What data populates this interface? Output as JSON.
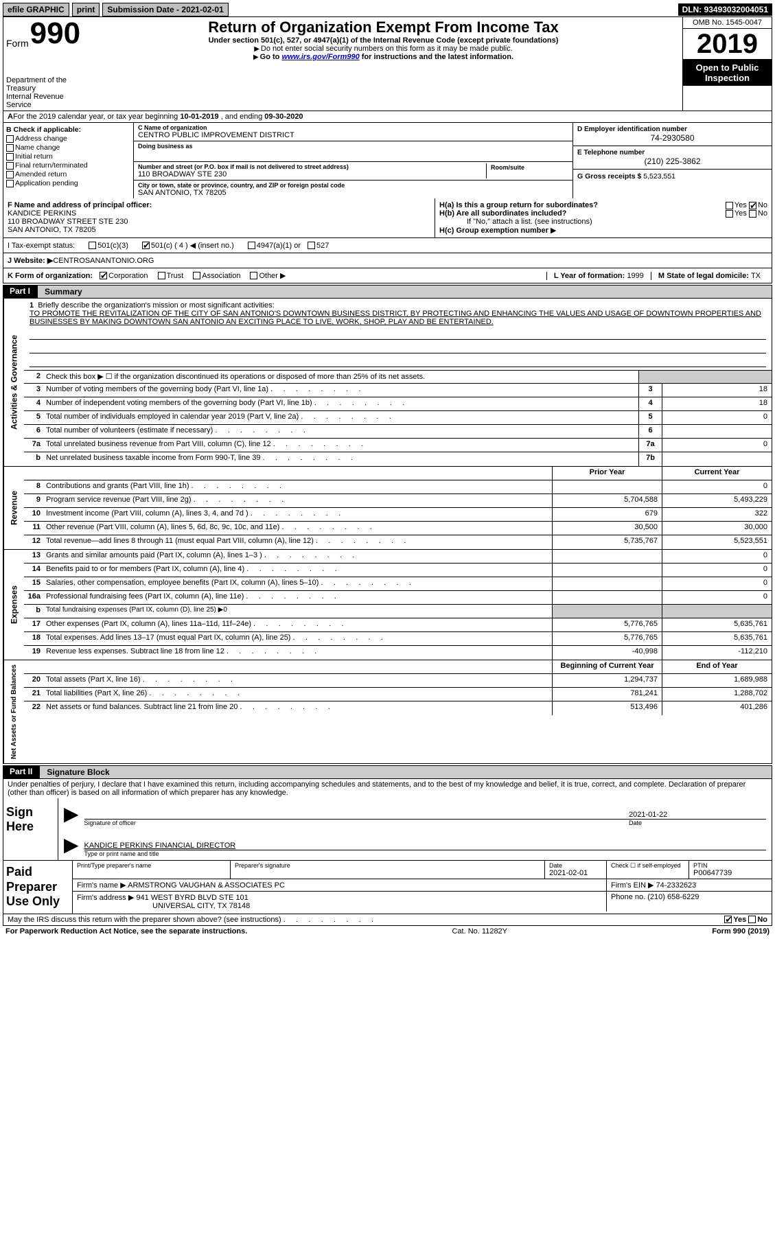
{
  "topbar": {
    "efile": "efile GRAPHIC",
    "print": "print",
    "subdate_label": "Submission Date - ",
    "subdate": "2021-02-01",
    "dln_label": "DLN: ",
    "dln": "93493032004051"
  },
  "header": {
    "form_small": "Form",
    "form_big": "990",
    "title": "Return of Organization Exempt From Income Tax",
    "subtitle": "Under section 501(c), 527, or 4947(a)(1) of the Internal Revenue Code (except private foundations)",
    "line1": "Do not enter social security numbers on this form as it may be made public.",
    "line2_pre": "Go to ",
    "line2_link": "www.irs.gov/Form990",
    "line2_post": " for instructions and the latest information.",
    "omb": "OMB No. 1545-0047",
    "year": "2019",
    "open": "Open to Public Inspection",
    "dept1": "Department of the Treasury",
    "dept2": "Internal Revenue Service"
  },
  "rowA": {
    "pre": "A",
    "txt": "For the 2019 calendar year, or tax year beginning ",
    "begin": "10-01-2019",
    "mid": "    , and ending ",
    "end": "09-30-2020"
  },
  "B": {
    "hdr": "B Check if applicable:",
    "o1": "Address change",
    "o2": "Name change",
    "o3": "Initial return",
    "o4": "Final return/terminated",
    "o5": "Amended return",
    "o6": "Application pending"
  },
  "C": {
    "name_lab": "C Name of organization",
    "name": "CENTRO PUBLIC IMPROVEMENT DISTRICT",
    "dba_lab": "Doing business as",
    "addr_lab": "Number and street (or P.O. box if mail is not delivered to street address)",
    "addr": "110 BROADWAY STE 230",
    "room_lab": "Room/suite",
    "city_lab": "City or town, state or province, country, and ZIP or foreign postal code",
    "city": "SAN ANTONIO, TX  78205"
  },
  "D": {
    "lab": "D Employer identification number",
    "val": "74-2930580"
  },
  "E": {
    "lab": "E Telephone number",
    "val": "(210) 225-3862"
  },
  "G": {
    "lab": "G Gross receipts $ ",
    "val": "5,523,551"
  },
  "F": {
    "lab": "F  Name and address of principal officer:",
    "name": "KANDICE PERKINS",
    "addr1": "110 BROADWAY STREET STE 230",
    "addr2": "SAN ANTONIO, TX  78205"
  },
  "H": {
    "a_lab": "H(a)  Is this a group return for subordinates?",
    "b_lab": "H(b)  Are all subordinates included?",
    "b_note": "If \"No,\" attach a list. (see instructions)",
    "c_lab": "H(c)  Group exemption number",
    "yes": "Yes",
    "no": "No"
  },
  "I": {
    "lab": "I    Tax-exempt status:",
    "o1": "501(c)(3)",
    "o2": "501(c) ( 4 ) ◀ (insert no.)",
    "o3": "4947(a)(1) or",
    "o4": "527"
  },
  "J": {
    "lab": "J    Website: ▶ ",
    "val": "CENTROSANANTONIO.ORG"
  },
  "K": {
    "lab": "K Form of organization:",
    "o1": "Corporation",
    "o2": "Trust",
    "o3": "Association",
    "o4": "Other ▶"
  },
  "L": {
    "lab": "L Year of formation: ",
    "val": "1999"
  },
  "M": {
    "lab": "M State of legal domicile: ",
    "val": "TX"
  },
  "partI": {
    "tag": "Part I",
    "title": "Summary",
    "q1": "Briefly describe the organization's mission or most significant activities:",
    "mission": "TO PROMOTE THE REVITALIZATION OF THE CITY OF SAN ANTONIO'S DOWNTOWN BUSINESS DISTRICT, BY PROTECTING AND ENHANCING THE VALUES AND USAGE OF DOWNTOWN PROPERTIES AND BUSINESSES BY MAKING DOWNTOWN SAN ANTONIO AN EXCITING PLACE TO LIVE, WORK, SHOP, PLAY AND BE ENTERTAINED.",
    "q2": "Check this box ▶ ☐  if the organization discontinued its operations or disposed of more than 25% of its net assets.",
    "vlabel1": "Activities & Governance",
    "vlabel2": "Revenue",
    "vlabel3": "Expenses",
    "vlabel4": "Net Assets or Fund Balances",
    "hdr_prior": "Prior Year",
    "hdr_curr": "Current Year",
    "hdr_boy": "Beginning of Current Year",
    "hdr_eoy": "End of Year",
    "lines_gov": [
      {
        "n": "3",
        "t": "Number of voting members of the governing body (Part VI, line 1a)",
        "box": "3",
        "v": "18"
      },
      {
        "n": "4",
        "t": "Number of independent voting members of the governing body (Part VI, line 1b)",
        "box": "4",
        "v": "18"
      },
      {
        "n": "5",
        "t": "Total number of individuals employed in calendar year 2019 (Part V, line 2a)",
        "box": "5",
        "v": "0"
      },
      {
        "n": "6",
        "t": "Total number of volunteers (estimate if necessary)",
        "box": "6",
        "v": ""
      },
      {
        "n": "7a",
        "t": "Total unrelated business revenue from Part VIII, column (C), line 12",
        "box": "7a",
        "v": "0"
      },
      {
        "n": "b",
        "t": "Net unrelated business taxable income from Form 990-T, line 39",
        "box": "7b",
        "v": ""
      }
    ],
    "lines_rev": [
      {
        "n": "8",
        "t": "Contributions and grants (Part VIII, line 1h)",
        "p": "",
        "c": "0"
      },
      {
        "n": "9",
        "t": "Program service revenue (Part VIII, line 2g)",
        "p": "5,704,588",
        "c": "5,493,229"
      },
      {
        "n": "10",
        "t": "Investment income (Part VIII, column (A), lines 3, 4, and 7d )",
        "p": "679",
        "c": "322"
      },
      {
        "n": "11",
        "t": "Other revenue (Part VIII, column (A), lines 5, 6d, 8c, 9c, 10c, and 11e)",
        "p": "30,500",
        "c": "30,000"
      },
      {
        "n": "12",
        "t": "Total revenue—add lines 8 through 11 (must equal Part VIII, column (A), line 12)",
        "p": "5,735,767",
        "c": "5,523,551"
      }
    ],
    "lines_exp": [
      {
        "n": "13",
        "t": "Grants and similar amounts paid (Part IX, column (A), lines 1–3 )",
        "p": "",
        "c": "0"
      },
      {
        "n": "14",
        "t": "Benefits paid to or for members (Part IX, column (A), line 4)",
        "p": "",
        "c": "0"
      },
      {
        "n": "15",
        "t": "Salaries, other compensation, employee benefits (Part IX, column (A), lines 5–10)",
        "p": "",
        "c": "0"
      },
      {
        "n": "16a",
        "t": "Professional fundraising fees (Part IX, column (A), line 11e)",
        "p": "",
        "c": "0"
      },
      {
        "n": "b",
        "t": "Total fundraising expenses (Part IX, column (D), line 25) ▶0",
        "p": null,
        "c": null
      },
      {
        "n": "17",
        "t": "Other expenses (Part IX, column (A), lines 11a–11d, 11f–24e)",
        "p": "5,776,765",
        "c": "5,635,761"
      },
      {
        "n": "18",
        "t": "Total expenses. Add lines 13–17 (must equal Part IX, column (A), line 25)",
        "p": "5,776,765",
        "c": "5,635,761"
      },
      {
        "n": "19",
        "t": "Revenue less expenses. Subtract line 18 from line 12",
        "p": "-40,998",
        "c": "-112,210"
      }
    ],
    "lines_net": [
      {
        "n": "20",
        "t": "Total assets (Part X, line 16)",
        "p": "1,294,737",
        "c": "1,689,988"
      },
      {
        "n": "21",
        "t": "Total liabilities (Part X, line 26)",
        "p": "781,241",
        "c": "1,288,702"
      },
      {
        "n": "22",
        "t": "Net assets or fund balances. Subtract line 21 from line 20",
        "p": "513,496",
        "c": "401,286"
      }
    ]
  },
  "partII": {
    "tag": "Part II",
    "title": "Signature Block",
    "perjury": "Under penalties of perjury, I declare that I have examined this return, including accompanying schedules and statements, and to the best of my knowledge and belief, it is true, correct, and complete. Declaration of preparer (other than officer) is based on all information of which preparer has any knowledge.",
    "sign_here": "Sign Here",
    "sig_officer": "Signature of officer",
    "sig_date": "Date",
    "sig_date_val": "2021-01-22",
    "officer_name": "KANDICE PERKINS  FINANCIAL DIRECTOR",
    "officer_sub": "Type or print name and title",
    "paid": "Paid Preparer Use Only",
    "prep_name_lab": "Print/Type preparer's name",
    "prep_sig_lab": "Preparer's signature",
    "prep_date_lab": "Date",
    "prep_date": "2021-02-01",
    "prep_check": "Check ☐ if self-employed",
    "ptin_lab": "PTIN",
    "ptin": "P00647739",
    "firm_name_lab": "Firm's name     ▶",
    "firm_name": "ARMSTRONG VAUGHAN & ASSOCIATES PC",
    "firm_ein_lab": "Firm's EIN ▶",
    "firm_ein": "74-2332623",
    "firm_addr_lab": "Firm's address ▶",
    "firm_addr1": "941 WEST BYRD BLVD STE 101",
    "firm_addr2": "UNIVERSAL CITY, TX  78148",
    "firm_phone_lab": "Phone no. ",
    "firm_phone": "(210) 658-6229",
    "discuss": "May the IRS discuss this return with the preparer shown above? (see instructions)"
  },
  "footer": {
    "left": "For Paperwork Reduction Act Notice, see the separate instructions.",
    "mid": "Cat. No. 11282Y",
    "right": "Form 990 (2019)"
  }
}
